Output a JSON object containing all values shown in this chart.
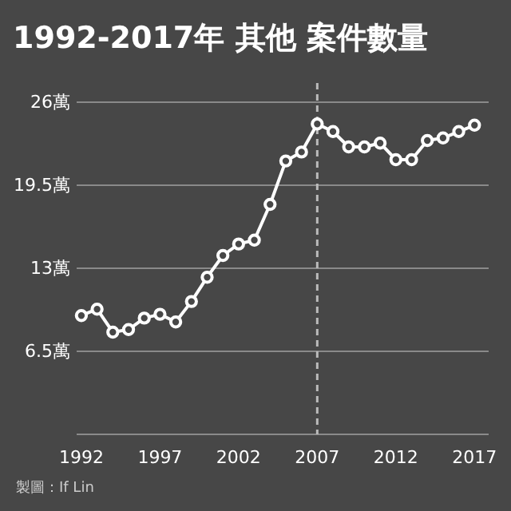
{
  "chart_data": {
    "type": "line",
    "title": "1992-2017年 其他 案件數量",
    "x": [
      1992,
      1993,
      1994,
      1995,
      1996,
      1997,
      1998,
      1999,
      2000,
      2001,
      2002,
      2003,
      2004,
      2005,
      2006,
      2007,
      2008,
      2009,
      2010,
      2011,
      2012,
      2013,
      2014,
      2015,
      2016,
      2017
    ],
    "series": [
      {
        "color": "#ffffff",
        "values": [
          9.3,
          9.8,
          8.0,
          8.2,
          9.1,
          9.4,
          8.8,
          10.4,
          12.3,
          14.0,
          14.9,
          15.2,
          18.0,
          21.4,
          22.1,
          24.3,
          23.7,
          22.5,
          22.5,
          22.8,
          21.5,
          21.5,
          23.0,
          23.2,
          23.7,
          24.2
        ]
      }
    ],
    "xlim": [
      1991.7,
      2017.9
    ],
    "xticks": [
      1992,
      1997,
      2002,
      2007,
      2012,
      2017
    ],
    "ylim": [
      0,
      27.5
    ],
    "yticks": [
      {
        "value": 0,
        "label": null
      },
      {
        "value": 6.5,
        "label": "6.5萬"
      },
      {
        "value": 13,
        "label": "13萬"
      },
      {
        "value": 19.5,
        "label": "19.5萬"
      },
      {
        "value": 26,
        "label": "26萬"
      }
    ],
    "grid": "y",
    "marker": "circle",
    "line_style": "solid",
    "ref_lines": [
      {
        "axis": "x",
        "value": 2007,
        "color": "#bbbbbb",
        "line_style": "dashed"
      }
    ],
    "annotations": [
      "製圖：If Lin"
    ]
  }
}
